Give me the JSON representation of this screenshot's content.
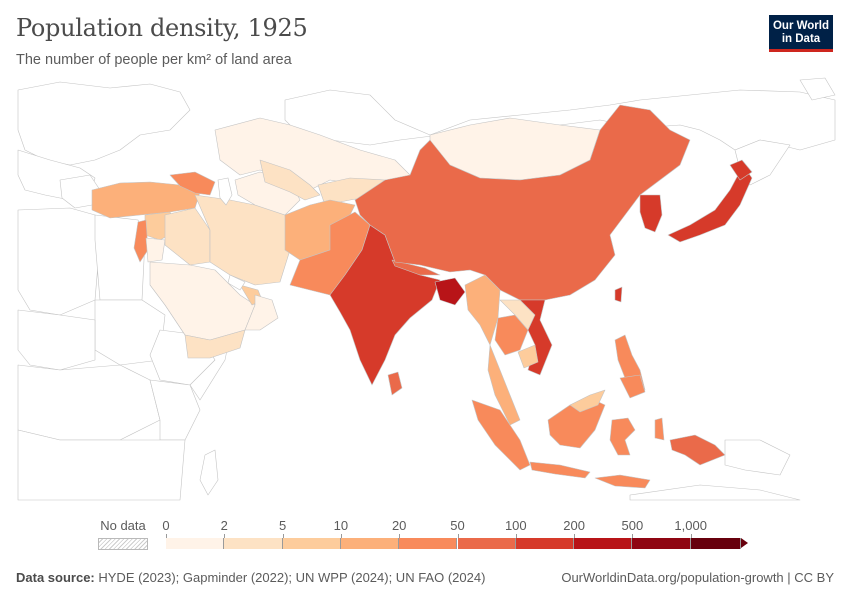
{
  "header": {
    "title": "Population density, 1925",
    "subtitle": "The number of people per km² of land area",
    "logo_line1": "Our World",
    "logo_line2": "in Data"
  },
  "legend": {
    "no_data_label": "No data",
    "ticks": [
      "0",
      "2",
      "5",
      "10",
      "20",
      "50",
      "100",
      "200",
      "500",
      "1,000"
    ],
    "colors": [
      "#fff3e8",
      "#fde2c4",
      "#fdcc9c",
      "#fcb07a",
      "#f88a5b",
      "#ea6a4a",
      "#d63a2a",
      "#b81418",
      "#8f0512",
      "#67000d"
    ]
  },
  "footer": {
    "source_label": "Data source:",
    "source_text": "HYDE (2023); Gapminder (2022); UN WPP (2024); UN FAO (2024)",
    "link": "OurWorldinData.org/population-growth | CC BY"
  }
}
